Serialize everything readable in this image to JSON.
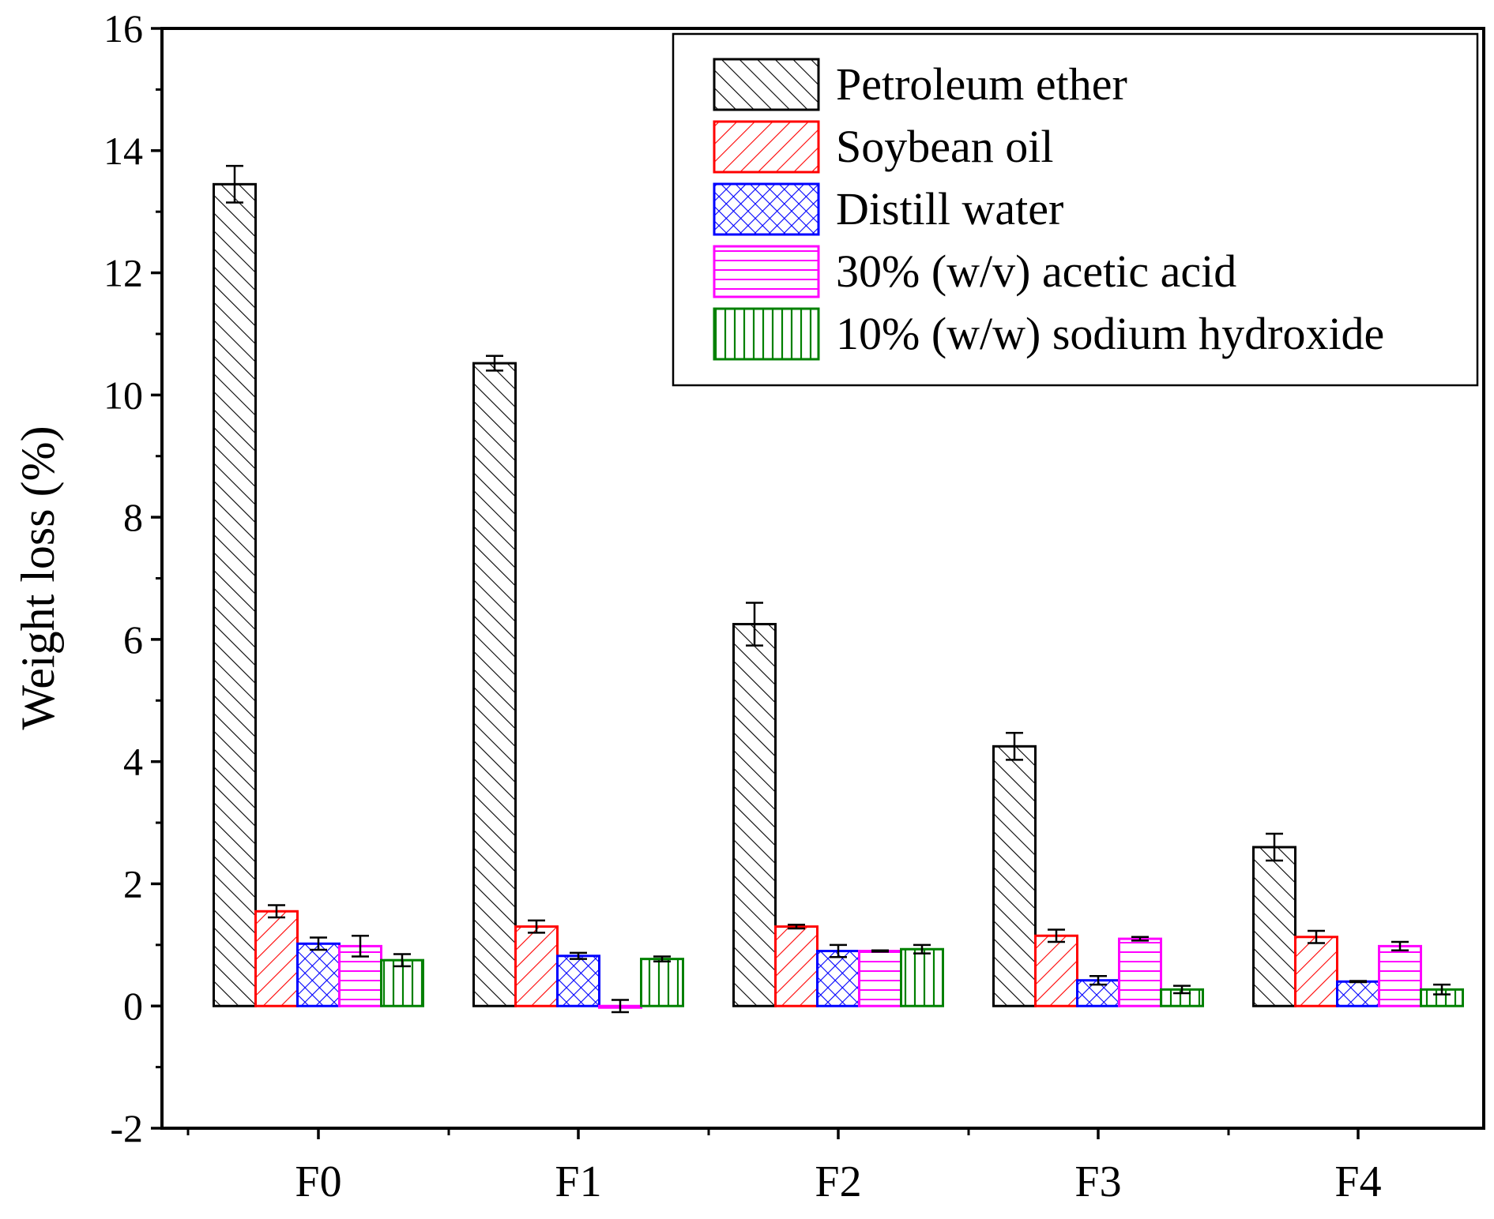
{
  "chart_data": {
    "type": "bar",
    "title": "",
    "xlabel": "",
    "ylabel": "Weight loss (%)",
    "ylim": [
      -2,
      16
    ],
    "y_ticks": [
      -2,
      0,
      2,
      4,
      6,
      8,
      10,
      12,
      14,
      16
    ],
    "y_tick_labels": [
      "-2",
      "0",
      "2",
      "4",
      "6",
      "8",
      "10",
      "12",
      "14",
      "16"
    ],
    "categories": [
      "F0",
      "F1",
      "F2",
      "F3",
      "F4"
    ],
    "legend_position": "top-right",
    "series": [
      {
        "name": "Petroleum ether",
        "color": "#000000",
        "pattern": "diagonal-right",
        "values": [
          13.45,
          10.52,
          6.25,
          4.25,
          2.6
        ],
        "errors": [
          0.3,
          0.12,
          0.35,
          0.22,
          0.22
        ]
      },
      {
        "name": "Soybean oil",
        "color": "#ff0000",
        "pattern": "diagonal-left",
        "values": [
          1.55,
          1.3,
          1.3,
          1.15,
          1.13
        ],
        "errors": [
          0.1,
          0.1,
          0.03,
          0.1,
          0.1
        ]
      },
      {
        "name": "Distill water",
        "color": "#0000ff",
        "pattern": "crosshatch",
        "values": [
          1.02,
          0.82,
          0.9,
          0.42,
          0.4
        ],
        "errors": [
          0.1,
          0.05,
          0.1,
          0.07,
          0.01
        ]
      },
      {
        "name": "30% (w/v) acetic acid",
        "color": "#ff00ff",
        "pattern": "horizontal",
        "values": [
          0.98,
          0.0,
          0.9,
          1.1,
          0.98
        ],
        "errors": [
          0.17,
          0.1,
          0.01,
          0.03,
          0.07
        ]
      },
      {
        "name": "10% (w/w) sodium hydroxide",
        "color": "#008000",
        "pattern": "vertical",
        "values": [
          0.75,
          0.77,
          0.93,
          0.27,
          0.27
        ],
        "errors": [
          0.1,
          0.04,
          0.07,
          0.06,
          0.08
        ]
      }
    ]
  }
}
